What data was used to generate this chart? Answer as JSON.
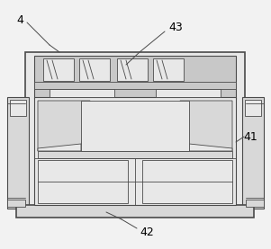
{
  "background_color": "#f2f2f2",
  "line_color": "#4a4a4a",
  "fill_gray": "#c8c8c8",
  "fill_light": "#d8d8d8",
  "fill_lighter": "#e8e8e8",
  "fill_white": "#f0f0f0",
  "label_4": "4",
  "label_41": "41",
  "label_42": "42",
  "label_43": "43",
  "figsize": [
    3.01,
    2.77
  ],
  "dpi": 100
}
